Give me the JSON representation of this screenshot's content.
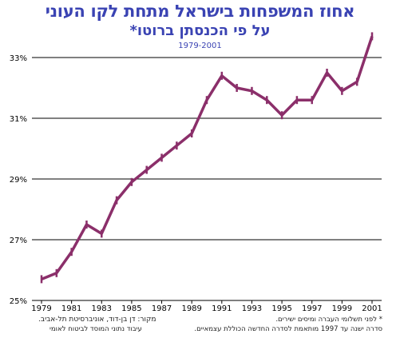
{
  "title": "אחוז המשפחות בישראל מתחת לקו העוני",
  "subtitle": "על פי הכנסתן ברוטו*",
  "period": "1979-2001",
  "colors": {
    "title": "#3a43b3",
    "series": "#8b2f6a"
  },
  "footnotes": {
    "right_1": "* לפני תשלומי העברה ומיסים ישירים.",
    "right_2": "סדרה ישנה עד 1997 מותאמת לסדרה החדשה הכוללת עצמאיים.",
    "left_1": "מקור: דן בן-דוד, אוניברסיטת תל-אביב.",
    "left_2": "עיבוד נתוני המוסד לביטוח לאומי"
  },
  "chart_data": {
    "type": "line",
    "x": [
      1979,
      1980,
      1981,
      1982,
      1983,
      1984,
      1985,
      1986,
      1987,
      1988,
      1989,
      1990,
      1991,
      1992,
      1993,
      1994,
      1995,
      1996,
      1997,
      1998,
      1999,
      2000,
      2001
    ],
    "series": [
      {
        "values": [
          25.7,
          25.9,
          26.6,
          27.5,
          27.2,
          28.3,
          28.9,
          29.3,
          29.7,
          30.1,
          30.5,
          31.6,
          32.4,
          32.0,
          31.9,
          31.6,
          31.1,
          31.6,
          31.6,
          32.5,
          31.9,
          32.2,
          33.7
        ]
      }
    ],
    "xticks": [
      1979,
      1981,
      1983,
      1985,
      1987,
      1989,
      1991,
      1993,
      1995,
      1997,
      1999,
      2001
    ],
    "yticks": [
      25,
      27,
      29,
      31,
      33
    ],
    "ytick_labels": [
      "25%",
      "27%",
      "29%",
      "31%",
      "33%"
    ],
    "ylim": [
      25,
      33.8
    ],
    "xlim": [
      1979,
      2001
    ],
    "grid": "horizontal"
  }
}
